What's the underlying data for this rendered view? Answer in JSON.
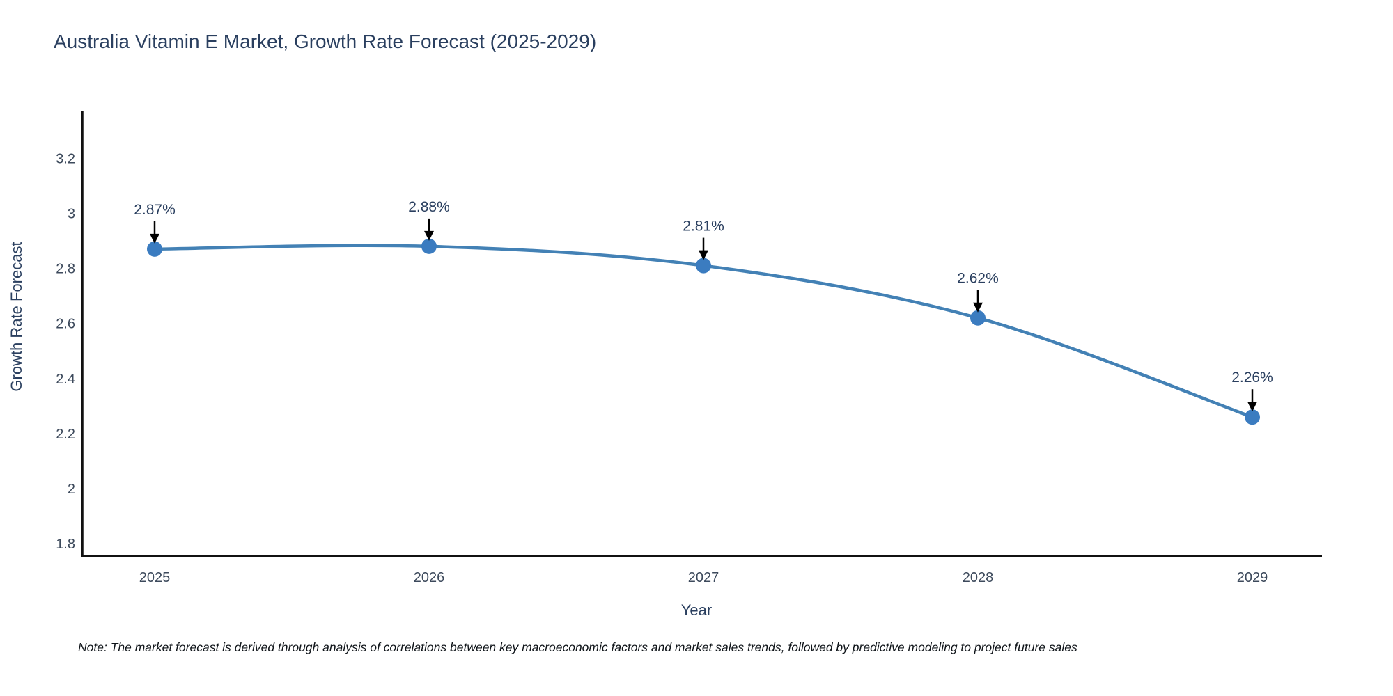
{
  "chart_data": {
    "type": "line",
    "title": "Australia Vitamin E Market, Growth Rate Forecast (2025-2029)",
    "xlabel": "Year",
    "ylabel": "Growth Rate Forecast",
    "x": [
      2025,
      2026,
      2027,
      2028,
      2029
    ],
    "series": [
      {
        "name": "Growth Rate Forecast",
        "values": [
          2.87,
          2.88,
          2.81,
          2.62,
          2.26
        ]
      }
    ],
    "point_labels": [
      "2.87%",
      "2.88%",
      "2.81%",
      "2.62%",
      "2.26%"
    ],
    "yticks": [
      1.8,
      2,
      2.2,
      2.4,
      2.6,
      2.8,
      3,
      3.2
    ],
    "ylim": [
      1.755,
      3.37
    ],
    "grid": false,
    "legend": false,
    "line_shape": "spline",
    "colors": {
      "line": "#4381b5",
      "marker": "#3b7cc0",
      "arrow": "#000000",
      "axis": "#111111",
      "tick_labels": "#3d4a5c",
      "titles": "#2a3f5f"
    }
  },
  "note": "Note: The market forecast is derived through analysis of correlations between key macroeconomic factors and market sales trends, followed by predictive modeling to project future sales"
}
